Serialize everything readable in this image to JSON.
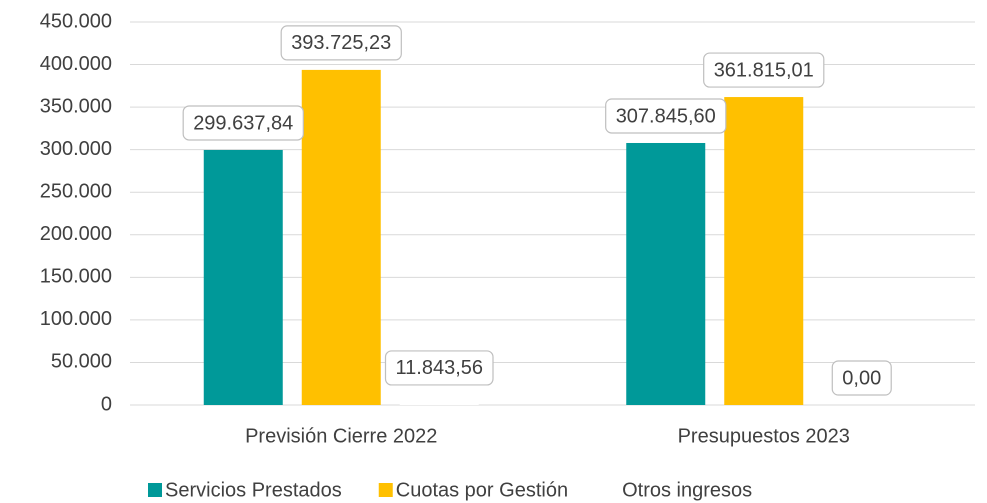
{
  "chart_data": {
    "type": "bar",
    "categories": [
      "Previsión Cierre 2022",
      "Presupuestos 2023"
    ],
    "series": [
      {
        "name": "Servicios Prestados",
        "color": "#009999",
        "values": [
          299637.84,
          307845.6
        ],
        "value_labels": [
          "299.637,84",
          "307.845,60"
        ]
      },
      {
        "name": "Cuotas por Gestión",
        "color": "#ffc000",
        "values": [
          393725.23,
          361815.01
        ],
        "value_labels": [
          "393.725,23",
          "361.815,01"
        ]
      },
      {
        "name": "Otros ingresos",
        "color": "#ffffff",
        "values": [
          11843.56,
          0
        ],
        "value_labels": [
          "11.843,56",
          "0,00"
        ]
      }
    ],
    "ylim": [
      0,
      450000
    ],
    "yticks": [
      0,
      {
        "value": 50000,
        "label": "50.000"
      },
      {
        "value": 100000,
        "label": "100.000"
      },
      {
        "value": 150000,
        "label": "150.000"
      },
      {
        "value": 200000,
        "label": "200.000"
      },
      {
        "value": 250000,
        "label": "250.000"
      },
      {
        "value": 300000,
        "label": "300.000"
      },
      {
        "value": 350000,
        "label": "350.000"
      },
      {
        "value": 400000,
        "label": "400.000"
      },
      {
        "value": 450000,
        "label": "450.000"
      }
    ],
    "grid": true,
    "legend": "bottom"
  }
}
